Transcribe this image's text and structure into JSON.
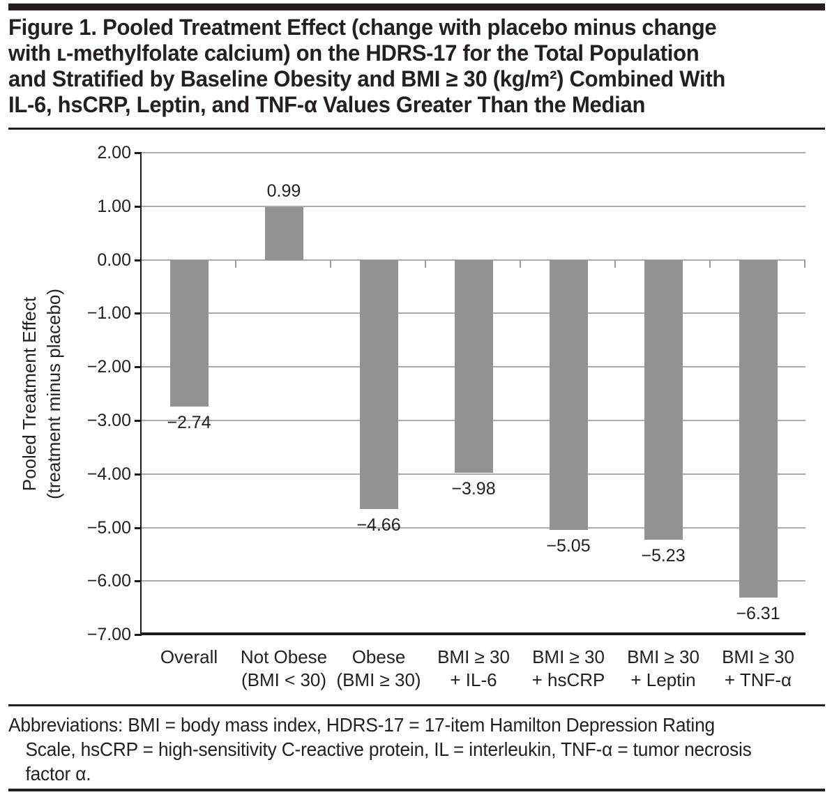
{
  "figure": {
    "title_lines": [
      "Figure 1. Pooled Treatment Effect (change with placebo minus change",
      "with ʟ-methylfolate calcium) on the HDRS-17 for the Total Population",
      "and Stratified by Baseline Obesity and BMI ≥ 30 (kg/m²) Combined With",
      "IL-6, hsCRP, Leptin, and TNF-α Values Greater Than the Median"
    ],
    "footnote_lines": [
      "Abbreviations: BMI = body mass index, HDRS-17 = 17-item Hamilton Depression Rating",
      "Scale, hsCRP = high-sensitivity C-reactive protein, IL = interleukin, TNF-α = tumor necrosis",
      "factor α."
    ]
  },
  "chart_data": {
    "type": "bar",
    "title": "Figure 1. Pooled Treatment Effect (change with placebo minus change with ʟ-methylfolate calcium) on the HDRS-17 for the Total Population and Stratified by Baseline Obesity and BMI ≥ 30 (kg/m²) Combined With IL-6, hsCRP, Leptin, and TNF-α Values Greater Than the Median",
    "ylabel": "Pooled Treatment Effect (treatment minus placebo)",
    "ylabel_lines": [
      "Pooled Treatment Effect",
      "(treatment minus placebo)"
    ],
    "xlabel": "",
    "categories": [
      [
        "Overall"
      ],
      [
        "Not Obese",
        "(BMI < 30)"
      ],
      [
        "Obese",
        "(BMI ≥ 30)"
      ],
      [
        "BMI ≥ 30",
        "+ IL-6"
      ],
      [
        "BMI ≥ 30",
        "+ hsCRP"
      ],
      [
        "BMI ≥ 30",
        "+ Leptin"
      ],
      [
        "BMI ≥ 30",
        "+ TNF-α"
      ]
    ],
    "category_names": [
      "Overall",
      "Not Obese (BMI < 30)",
      "Obese (BMI ≥ 30)",
      "BMI ≥ 30 + IL-6",
      "BMI ≥ 30 + hsCRP",
      "BMI ≥ 30 + Leptin",
      "BMI ≥ 30 + TNF-α"
    ],
    "values": [
      -2.74,
      0.99,
      -4.66,
      -3.98,
      -5.05,
      -5.23,
      -6.31
    ],
    "value_labels": [
      "−2.74",
      "0.99",
      "−4.66",
      "−3.98",
      "−5.05",
      "−5.23",
      "−6.31"
    ],
    "ylim": [
      -7,
      2
    ],
    "yticks": [
      2,
      1,
      0,
      -1,
      -2,
      -3,
      -4,
      -5,
      -6,
      -7
    ],
    "ytick_labels": [
      "2.00",
      "1.00",
      "0.00",
      "−1.00",
      "−2.00",
      "−3.00",
      "−4.00",
      "−5.00",
      "−6.00",
      "−7.00"
    ],
    "grid": true,
    "legend": false,
    "bar_color": "#929292",
    "gridline_color": "#ababab",
    "axis_color": "#1a1a1a",
    "text_color": "#231f20"
  }
}
